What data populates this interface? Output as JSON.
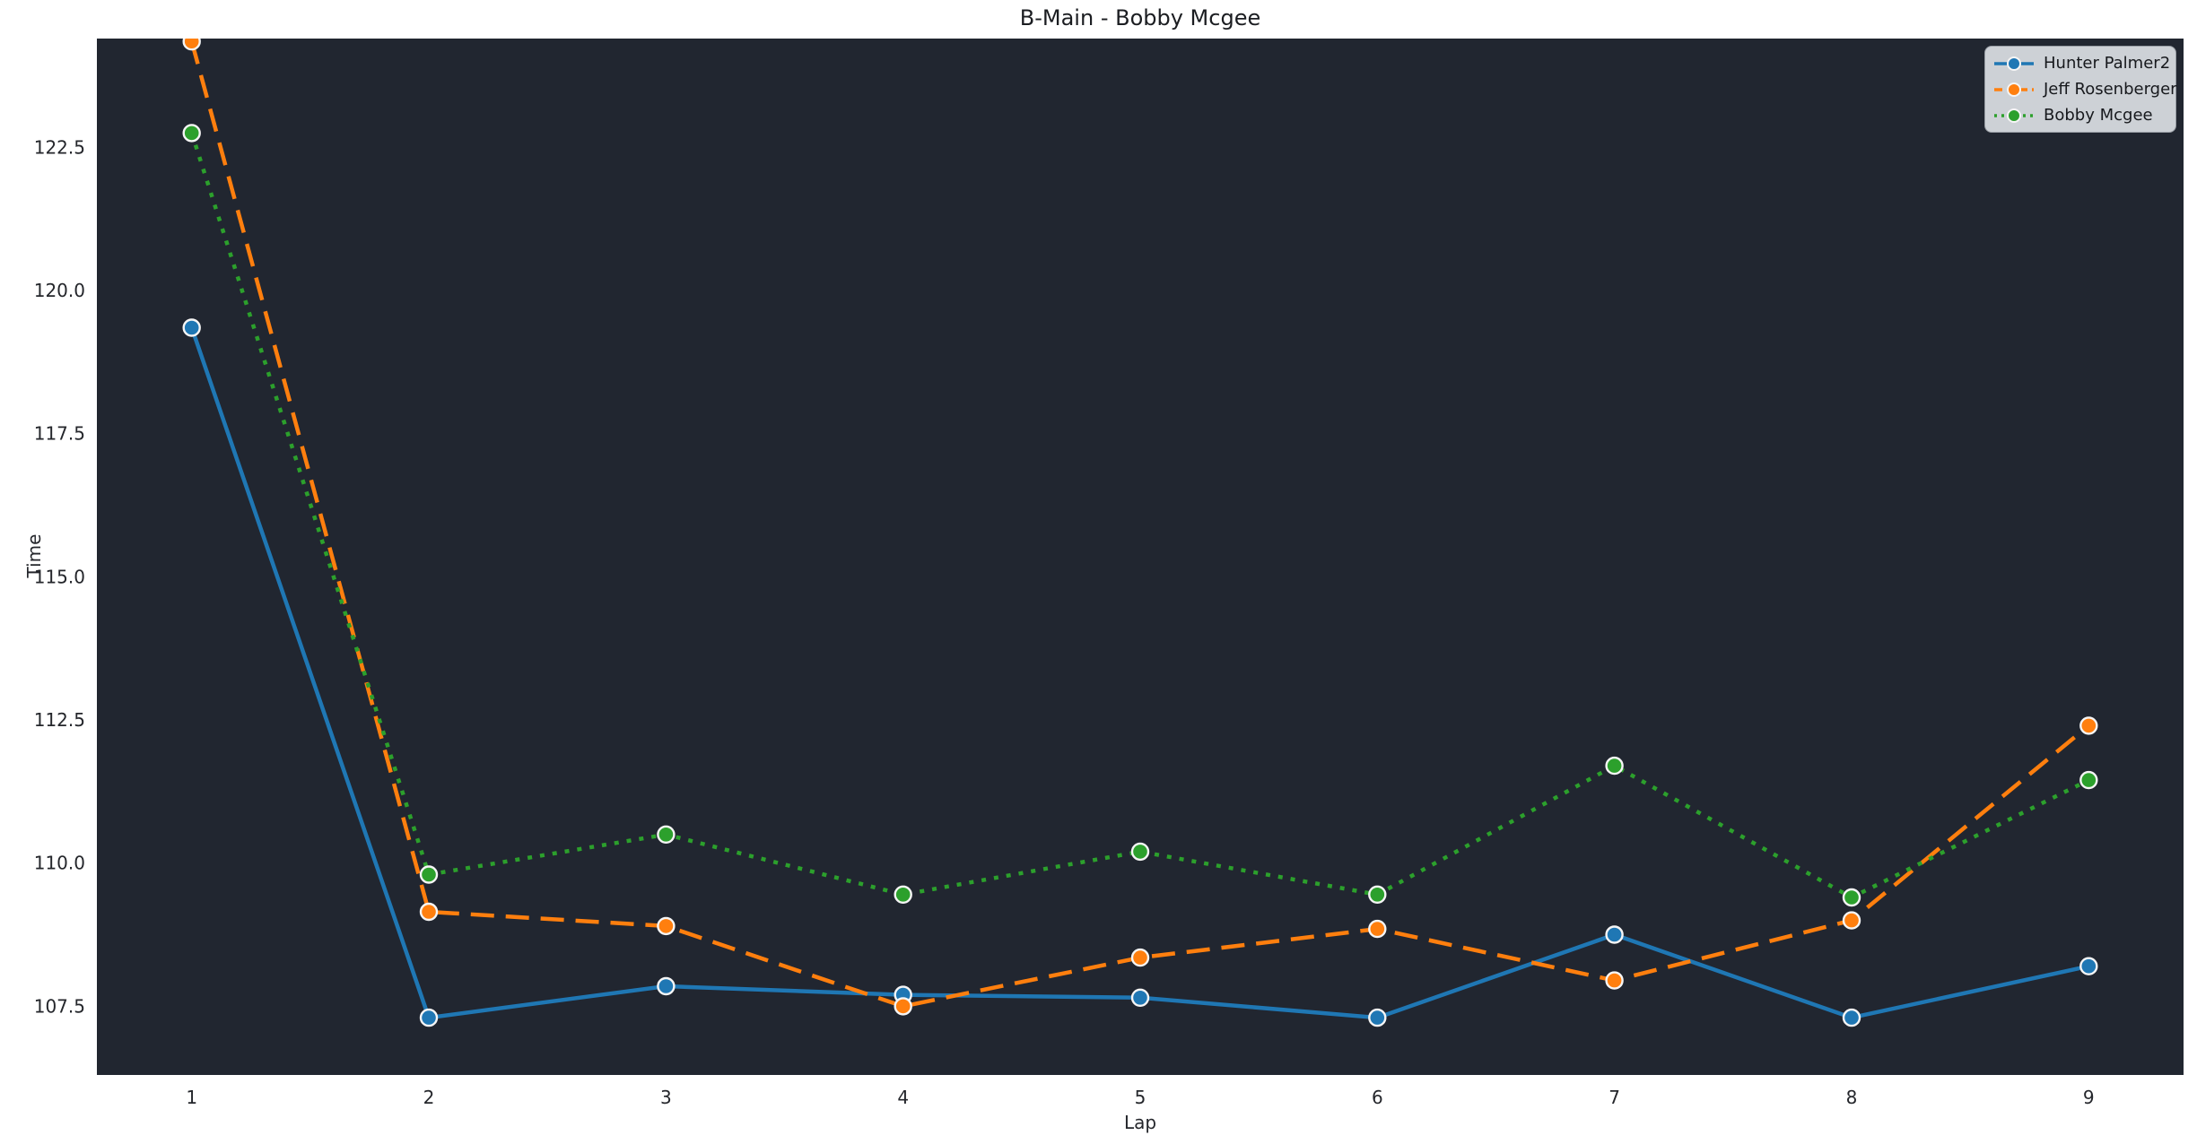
{
  "title": "B-Main - Bobby Mcgee",
  "chart_data": {
    "type": "line",
    "title": "B-Main - Bobby Mcgee",
    "xlabel": "Lap",
    "ylabel": "Time",
    "x": [
      1,
      2,
      3,
      4,
      5,
      6,
      7,
      8,
      9
    ],
    "series": [
      {
        "name": "Hunter Palmer2",
        "color": "#1f77b4",
        "line_style": "solid",
        "marker": "circle",
        "values": [
          119.35,
          107.3,
          107.85,
          107.7,
          107.65,
          107.3,
          108.75,
          107.3,
          108.2
        ]
      },
      {
        "name": "Jeff Rosenberger",
        "color": "#ff7f0e",
        "line_style": "dashed",
        "marker": "circle",
        "values": [
          124.35,
          109.15,
          108.9,
          107.5,
          108.35,
          108.85,
          107.95,
          109.0,
          112.4
        ]
      },
      {
        "name": "Bobby Mcgee",
        "color": "#2ca02c",
        "line_style": "dotted",
        "marker": "circle",
        "values": [
          122.75,
          109.8,
          110.5,
          109.45,
          110.2,
          109.45,
          111.7,
          109.4,
          111.45
        ]
      }
    ],
    "x_ticks": [
      1,
      2,
      3,
      4,
      5,
      6,
      7,
      8,
      9
    ],
    "y_ticks": [
      107.5,
      110.0,
      112.5,
      115.0,
      117.5,
      120.0,
      122.5
    ],
    "y_tick_decimals": 1,
    "xlim": [
      0.6,
      9.4
    ],
    "ylim": [
      106.3,
      124.4
    ],
    "grid": false,
    "legend_position": "upper right",
    "colors": {
      "figure_background": "#ffffff",
      "plot_background": "#212630",
      "tick_label": "#24262b",
      "title_text": "#1b1d21",
      "legend_background": "#cdd1d6",
      "legend_border": "#989da4",
      "marker_edge": "#f5f5f5"
    }
  }
}
